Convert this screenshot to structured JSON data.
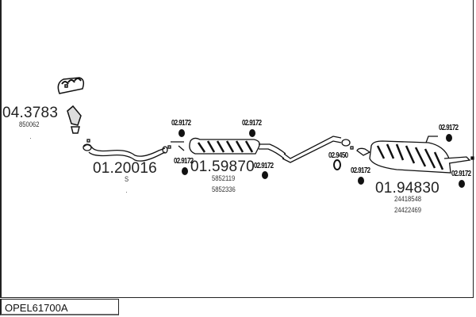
{
  "diagram_code": "OPEL61700A",
  "parts": [
    {
      "number": "04.3783",
      "refs": [
        "850062"
      ]
    },
    {
      "number": "01.20016",
      "refs": [
        "S"
      ]
    },
    {
      "number": "01.59870",
      "refs": [
        "5852119",
        "5852336"
      ]
    },
    {
      "number": "01.94830",
      "refs": [
        "24418548",
        "24422469"
      ]
    }
  ],
  "hangers": [
    "02.9172",
    "02.9172",
    "02.9172",
    "02.9172",
    "02.9172",
    "02.9172",
    "02.9172",
    "02.9450"
  ]
}
